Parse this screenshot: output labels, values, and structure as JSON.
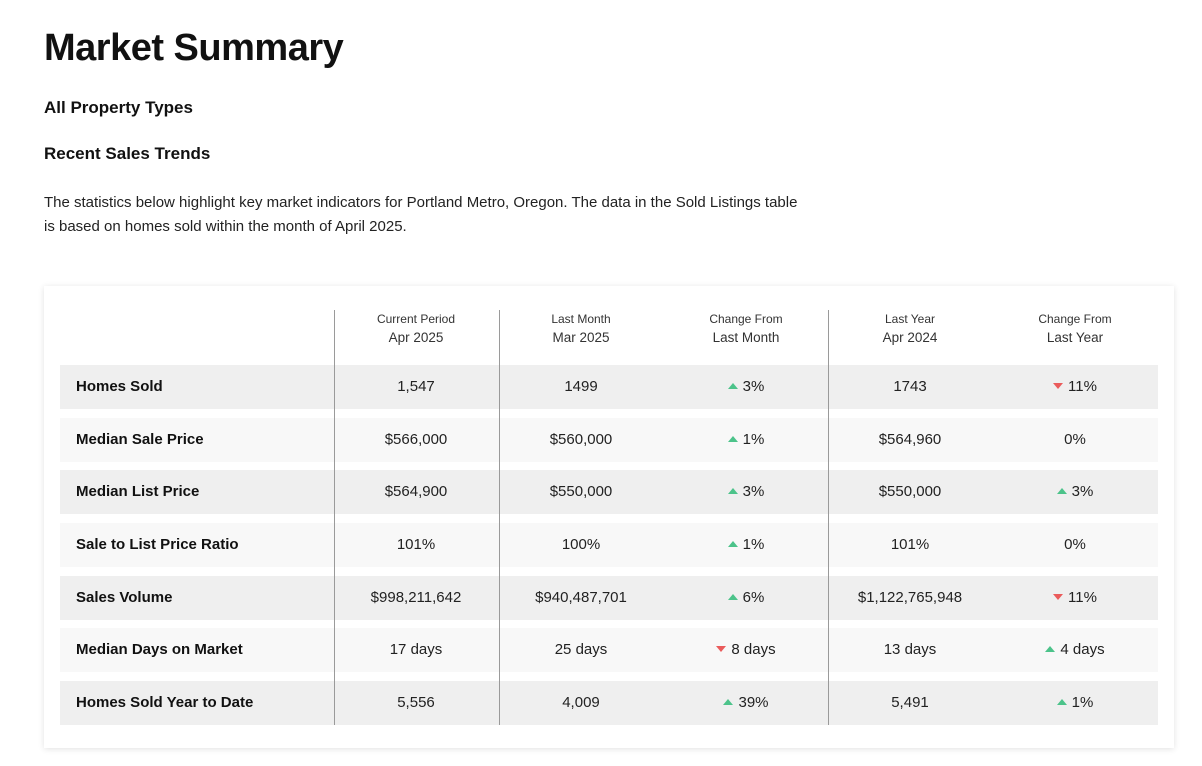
{
  "title": "Market Summary",
  "subtitle": "All Property Types",
  "section_title": "Recent Sales Trends",
  "description": "The statistics below highlight key market indicators for Portland Metro, Oregon. The data in the Sold Listings table is based on homes sold within the month of April 2025.",
  "colors": {
    "up": "#4cc38a",
    "down": "#ea5b5b",
    "row_odd": "#efefef",
    "row_even": "#f8f8f8"
  },
  "table": {
    "columns": [
      {
        "line1": "Current Period",
        "line2": "Apr 2025"
      },
      {
        "line1": "Last Month",
        "line2": "Mar 2025"
      },
      {
        "line1": "Change From",
        "line2": "Last Month"
      },
      {
        "line1": "Last Year",
        "line2": "Apr 2024"
      },
      {
        "line1": "Change From",
        "line2": "Last Year"
      }
    ],
    "rows": [
      {
        "label": "Homes Sold",
        "current": "1,547",
        "last_month": "1499",
        "change_month": {
          "text": "3%",
          "dir": "up"
        },
        "last_year": "1743",
        "change_year": {
          "text": "11%",
          "dir": "down"
        }
      },
      {
        "label": "Median Sale Price",
        "current": "$566,000",
        "last_month": "$560,000",
        "change_month": {
          "text": "1%",
          "dir": "up"
        },
        "last_year": "$564,960",
        "change_year": {
          "text": "0%",
          "dir": "none"
        }
      },
      {
        "label": "Median List Price",
        "current": "$564,900",
        "last_month": "$550,000",
        "change_month": {
          "text": "3%",
          "dir": "up"
        },
        "last_year": "$550,000",
        "change_year": {
          "text": "3%",
          "dir": "up"
        }
      },
      {
        "label": "Sale to List Price Ratio",
        "current": "101%",
        "last_month": "100%",
        "change_month": {
          "text": "1%",
          "dir": "up"
        },
        "last_year": "101%",
        "change_year": {
          "text": "0%",
          "dir": "none"
        }
      },
      {
        "label": "Sales Volume",
        "current": "$998,211,642",
        "last_month": "$940,487,701",
        "change_month": {
          "text": "6%",
          "dir": "up"
        },
        "last_year": "$1,122,765,948",
        "change_year": {
          "text": "11%",
          "dir": "down"
        }
      },
      {
        "label": "Median Days on Market",
        "current": "17 days",
        "last_month": "25 days",
        "change_month": {
          "text": "8 days",
          "dir": "down"
        },
        "last_year": "13 days",
        "change_year": {
          "text": "4 days",
          "dir": "up"
        }
      },
      {
        "label": "Homes Sold Year to Date",
        "current": "5,556",
        "last_month": "4,009",
        "change_month": {
          "text": "39%",
          "dir": "up"
        },
        "last_year": "5,491",
        "change_year": {
          "text": "1%",
          "dir": "up"
        }
      }
    ]
  }
}
